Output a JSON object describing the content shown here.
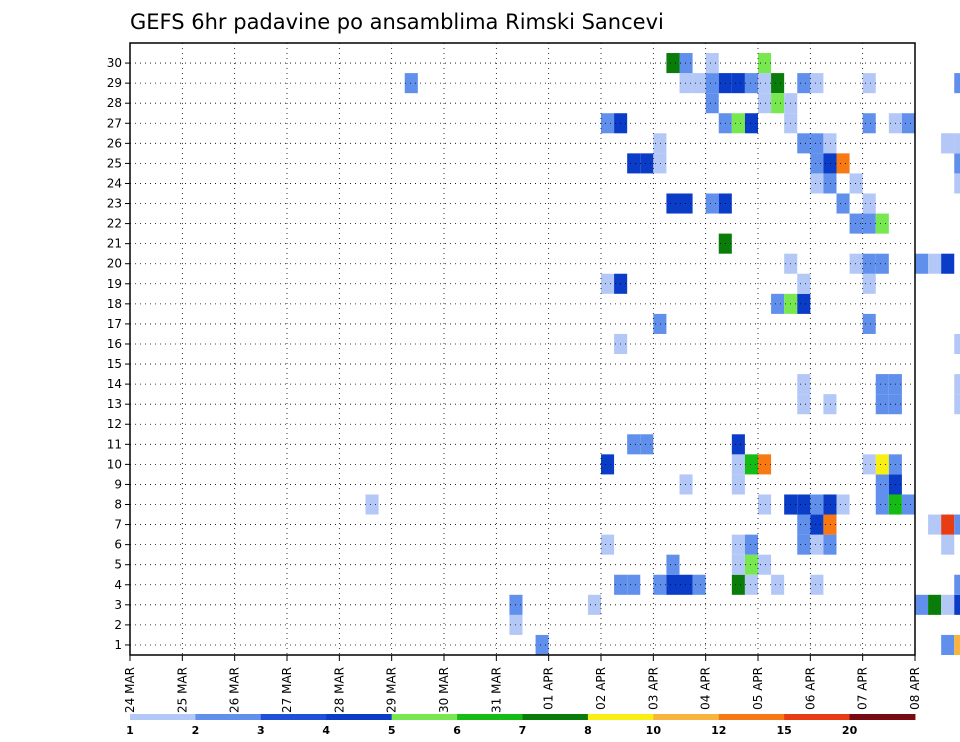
{
  "chart_data": {
    "type": "heatmap",
    "title": "GEFS 6hr padavine po ansamblima Rimski Sancevi",
    "x_tick_labels": [
      "24 MAR",
      "25 MAR",
      "26 MAR",
      "27 MAR",
      "28 MAR",
      "29 MAR",
      "30 MAR",
      "31 MAR",
      "01 APR",
      "02 APR",
      "03 APR",
      "04 APR",
      "05 APR",
      "06 APR",
      "07 APR",
      "08 APR"
    ],
    "y_tick_labels": [
      "1",
      "2",
      "3",
      "4",
      "5",
      "6",
      "7",
      "8",
      "9",
      "10",
      "11",
      "12",
      "13",
      "14",
      "15",
      "16",
      "17",
      "18",
      "19",
      "20",
      "21",
      "22",
      "23",
      "24",
      "25",
      "26",
      "27",
      "28",
      "29",
      "30"
    ],
    "ylim": [
      0,
      30
    ],
    "x_unit": "6-hour step from 24 MAR 00Z",
    "grid": true,
    "colorbar": {
      "labels": [
        "1",
        "2",
        "3",
        "4",
        "5",
        "6",
        "7",
        "8",
        "10",
        "12",
        "15",
        "20"
      ],
      "colors": [
        "#b4c8f8",
        "#6090ec",
        "#2050d8",
        "#0a3cc8",
        "#78e850",
        "#14bc14",
        "#0a7c0a",
        "#f8f014",
        "#f8b43c",
        "#f87814",
        "#e83c14",
        "#a01414",
        "#780a14"
      ]
    },
    "cells": [
      {
        "t": 31,
        "m": 0,
        "c": 1
      },
      {
        "t": 62,
        "m": 0,
        "c": 1
      },
      {
        "t": 63,
        "m": 0,
        "c": 8
      },
      {
        "t": 29,
        "m": 1,
        "c": 0
      },
      {
        "t": 29,
        "m": 2,
        "c": 1
      },
      {
        "t": 35,
        "m": 2,
        "c": 0
      },
      {
        "t": 60,
        "m": 2,
        "c": 1
      },
      {
        "t": 61,
        "m": 2,
        "c": 6
      },
      {
        "t": 62,
        "m": 2,
        "c": 0
      },
      {
        "t": 63,
        "m": 2,
        "c": 3
      },
      {
        "t": 37,
        "m": 3,
        "c": 1
      },
      {
        "t": 38,
        "m": 3,
        "c": 1
      },
      {
        "t": 40,
        "m": 3,
        "c": 1
      },
      {
        "t": 41,
        "m": 3,
        "c": 3
      },
      {
        "t": 42,
        "m": 3,
        "c": 3
      },
      {
        "t": 43,
        "m": 3,
        "c": 1
      },
      {
        "t": 46,
        "m": 3,
        "c": 6
      },
      {
        "t": 47,
        "m": 3,
        "c": 0
      },
      {
        "t": 49,
        "m": 3,
        "c": 0
      },
      {
        "t": 52,
        "m": 3,
        "c": 0
      },
      {
        "t": 63,
        "m": 3,
        "c": 1
      },
      {
        "t": 41,
        "m": 4,
        "c": 1
      },
      {
        "t": 46,
        "m": 4,
        "c": 0
      },
      {
        "t": 47,
        "m": 4,
        "c": 4
      },
      {
        "t": 48,
        "m": 4,
        "c": 0
      },
      {
        "t": 36,
        "m": 5,
        "c": 0
      },
      {
        "t": 46,
        "m": 5,
        "c": 0
      },
      {
        "t": 47,
        "m": 5,
        "c": 1
      },
      {
        "t": 51,
        "m": 5,
        "c": 1
      },
      {
        "t": 52,
        "m": 5,
        "c": 0
      },
      {
        "t": 53,
        "m": 5,
        "c": 1
      },
      {
        "t": 62,
        "m": 5,
        "c": 0
      },
      {
        "t": 51,
        "m": 6,
        "c": 1
      },
      {
        "t": 52,
        "m": 6,
        "c": 3
      },
      {
        "t": 53,
        "m": 6,
        "c": 9
      },
      {
        "t": 61,
        "m": 6,
        "c": 0
      },
      {
        "t": 62,
        "m": 6,
        "c": 10
      },
      {
        "t": 63,
        "m": 6,
        "c": 1
      },
      {
        "t": 48,
        "m": 7,
        "c": 0
      },
      {
        "t": 18,
        "m": 7,
        "c": 0
      },
      {
        "t": 50,
        "m": 7,
        "c": 3
      },
      {
        "t": 51,
        "m": 7,
        "c": 3
      },
      {
        "t": 52,
        "m": 7,
        "c": 1
      },
      {
        "t": 53,
        "m": 7,
        "c": 3
      },
      {
        "t": 54,
        "m": 7,
        "c": 0
      },
      {
        "t": 57,
        "m": 7,
        "c": 1
      },
      {
        "t": 58,
        "m": 7,
        "c": 5
      },
      {
        "t": 59,
        "m": 7,
        "c": 1
      },
      {
        "t": 42,
        "m": 8,
        "c": 0
      },
      {
        "t": 46,
        "m": 8,
        "c": 0
      },
      {
        "t": 57,
        "m": 8,
        "c": 1
      },
      {
        "t": 58,
        "m": 8,
        "c": 3
      },
      {
        "t": 36,
        "m": 9,
        "c": 3
      },
      {
        "t": 46,
        "m": 9,
        "c": 0
      },
      {
        "t": 47,
        "m": 9,
        "c": 5
      },
      {
        "t": 48,
        "m": 9,
        "c": 9
      },
      {
        "t": 56,
        "m": 9,
        "c": 0
      },
      {
        "t": 57,
        "m": 9,
        "c": 7
      },
      {
        "t": 58,
        "m": 9,
        "c": 1
      },
      {
        "t": 38,
        "m": 10,
        "c": 1
      },
      {
        "t": 39,
        "m": 10,
        "c": 1
      },
      {
        "t": 46,
        "m": 10,
        "c": 3
      },
      {
        "t": 51,
        "m": 12,
        "c": 0
      },
      {
        "t": 53,
        "m": 12,
        "c": 0
      },
      {
        "t": 57,
        "m": 12,
        "c": 1
      },
      {
        "t": 58,
        "m": 12,
        "c": 1
      },
      {
        "t": 63,
        "m": 12,
        "c": 0
      },
      {
        "t": 51,
        "m": 13,
        "c": 0
      },
      {
        "t": 57,
        "m": 13,
        "c": 1
      },
      {
        "t": 58,
        "m": 13,
        "c": 1
      },
      {
        "t": 63,
        "m": 13,
        "c": 0
      },
      {
        "t": 37,
        "m": 15,
        "c": 0
      },
      {
        "t": 63,
        "m": 15,
        "c": 0
      },
      {
        "t": 40,
        "m": 16,
        "c": 1
      },
      {
        "t": 56,
        "m": 16,
        "c": 1
      },
      {
        "t": 49,
        "m": 17,
        "c": 1
      },
      {
        "t": 50,
        "m": 17,
        "c": 4
      },
      {
        "t": 51,
        "m": 17,
        "c": 3
      },
      {
        "t": 36,
        "m": 18,
        "c": 0
      },
      {
        "t": 37,
        "m": 18,
        "c": 3
      },
      {
        "t": 51,
        "m": 18,
        "c": 0
      },
      {
        "t": 56,
        "m": 18,
        "c": 0
      },
      {
        "t": 50,
        "m": 19,
        "c": 0
      },
      {
        "t": 55,
        "m": 19,
        "c": 0
      },
      {
        "t": 56,
        "m": 19,
        "c": 1
      },
      {
        "t": 57,
        "m": 19,
        "c": 1
      },
      {
        "t": 60,
        "m": 19,
        "c": 1
      },
      {
        "t": 61,
        "m": 19,
        "c": 0
      },
      {
        "t": 62,
        "m": 19,
        "c": 3
      },
      {
        "t": 45,
        "m": 20,
        "c": 6
      },
      {
        "t": 55,
        "m": 21,
        "c": 1
      },
      {
        "t": 56,
        "m": 21,
        "c": 1
      },
      {
        "t": 57,
        "m": 21,
        "c": 4
      },
      {
        "t": 41,
        "m": 22,
        "c": 3
      },
      {
        "t": 42,
        "m": 22,
        "c": 3
      },
      {
        "t": 44,
        "m": 22,
        "c": 1
      },
      {
        "t": 45,
        "m": 22,
        "c": 3
      },
      {
        "t": 54,
        "m": 22,
        "c": 1
      },
      {
        "t": 56,
        "m": 22,
        "c": 0
      },
      {
        "t": 52,
        "m": 23,
        "c": 0
      },
      {
        "t": 53,
        "m": 23,
        "c": 1
      },
      {
        "t": 55,
        "m": 23,
        "c": 0
      },
      {
        "t": 63,
        "m": 23,
        "c": 0
      },
      {
        "t": 38,
        "m": 24,
        "c": 3
      },
      {
        "t": 39,
        "m": 24,
        "c": 3
      },
      {
        "t": 40,
        "m": 24,
        "c": 0
      },
      {
        "t": 63,
        "m": 24,
        "c": 1
      },
      {
        "t": 62,
        "m": 25,
        "c": 0
      },
      {
        "t": 63,
        "m": 25,
        "c": 0
      },
      {
        "t": 36,
        "m": 26,
        "c": 1
      },
      {
        "t": 37,
        "m": 26,
        "c": 3
      },
      {
        "t": 45,
        "m": 26,
        "c": 1
      },
      {
        "t": 46,
        "m": 26,
        "c": 4
      },
      {
        "t": 47,
        "m": 26,
        "c": 3
      },
      {
        "t": 50,
        "m": 26,
        "c": 0
      },
      {
        "t": 56,
        "m": 26,
        "c": 1
      },
      {
        "t": 58,
        "m": 26,
        "c": 0
      },
      {
        "t": 59,
        "m": 26,
        "c": 1
      }
    ],
    "cells_b": [
      {
        "t": 21,
        "m": 28,
        "c": 1
      },
      {
        "t": 42,
        "m": 28,
        "c": 0
      },
      {
        "t": 43,
        "m": 28,
        "c": 0
      },
      {
        "t": 44,
        "m": 28,
        "c": 1
      },
      {
        "t": 45,
        "m": 28,
        "c": 3
      },
      {
        "t": 46,
        "m": 28,
        "c": 3
      },
      {
        "t": 47,
        "m": 28,
        "c": 1
      },
      {
        "t": 48,
        "m": 28,
        "c": 0
      },
      {
        "t": 49,
        "m": 28,
        "c": 6
      },
      {
        "t": 51,
        "m": 28,
        "c": 1
      },
      {
        "t": 52,
        "m": 28,
        "c": 0
      },
      {
        "t": 56,
        "m": 28,
        "c": 0
      },
      {
        "t": 63,
        "m": 28,
        "c": 1
      },
      {
        "t": 44,
        "m": 27,
        "c": 1
      },
      {
        "t": 48,
        "m": 27,
        "c": 0
      },
      {
        "t": 49,
        "m": 27,
        "c": 4
      },
      {
        "t": 50,
        "m": 27,
        "c": 0
      },
      {
        "t": 41,
        "m": 29,
        "c": 6
      },
      {
        "t": 42,
        "m": 29,
        "c": 1
      },
      {
        "t": 44,
        "m": 29,
        "c": 0
      },
      {
        "t": 48,
        "m": 29,
        "c": 4
      },
      {
        "t": 40,
        "m": 25,
        "c": 0
      },
      {
        "t": 51,
        "m": 25,
        "c": 1
      },
      {
        "t": 52,
        "m": 25,
        "c": 1
      },
      {
        "t": 53,
        "m": 25,
        "c": 0
      },
      {
        "t": 62,
        "m": 25,
        "c": 0
      },
      {
        "t": 52,
        "m": 24,
        "c": 1
      },
      {
        "t": 53,
        "m": 24,
        "c": 3
      },
      {
        "t": 54,
        "m": 24,
        "c": 9
      }
    ]
  }
}
